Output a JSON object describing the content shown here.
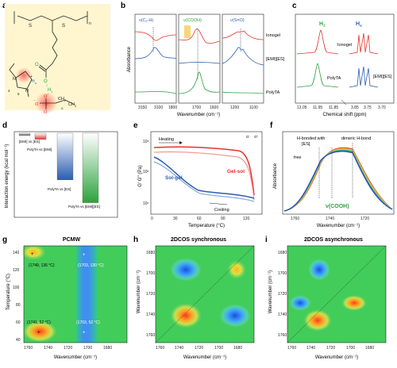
{
  "panels": {
    "a": {
      "label": "a",
      "structure": {
        "sulfur1": "S",
        "sulfur2": "S",
        "repeat_n": "n",
        "carbonyl_o": "O",
        "hydroxyl_o": "O",
        "h1": "H",
        "h1_sub": "1",
        "n1": "N",
        "n2": "N",
        "plus": "+",
        "minus": "−",
        "num_ring_4": "4",
        "num_ring_5": "5",
        "ha": "H",
        "ha_sub": "a",
        "s_center": "S",
        "o_top": "O",
        "o_left": "O",
        "o_bottom": "O",
        "ch2": "CH",
        "ch2_sub": "2",
        "ch3": "CH",
        "ch3_sub": "3",
        "chain_label": "a"
      }
    },
    "b": {
      "label": "b",
      "ylabel": "Absorbance",
      "xlabel": "Wavenumber (cm⁻¹)",
      "sections": [
        {
          "title": "ν(C",
          "title_sub": "2",
          "title_end": "-H)",
          "ticks": [
            "3150",
            "3100",
            "1800"
          ]
        },
        {
          "title": "ν(COOH)",
          "ticks": [
            "1700",
            "1600"
          ]
        },
        {
          "title": "ν(S=O)",
          "ticks": [
            "1200",
            "1100"
          ]
        }
      ],
      "legend": [
        "Ionogel",
        "[EMI][ES]",
        "PolyTA"
      ],
      "colors": {
        "ionogel": "#e8322b",
        "emies": "#2a5db0",
        "polyta": "#2ca23c"
      }
    },
    "c": {
      "label": "c",
      "xlabel": "Chemical shift (ppm)",
      "ticks": [
        "12.05",
        "11.95",
        "11.85",
        "3.85",
        "3.75",
        "3.70"
      ],
      "h1_label": "H",
      "h1_sub": "1",
      "ha_label": "H",
      "ha_sub": "a",
      "labels": [
        "Ionogel",
        "PolyTA",
        "[EMI][ES]"
      ]
    },
    "d": {
      "label": "d",
      "ylabel": "Interaction energy (kcal mol⁻¹)",
      "chart_data": {
        "type": "bar",
        "categories": [
          "[EMI] vs [ES]",
          "PolyTA vs [EMI]",
          "PolyTA vs [ES]",
          "PolyTA vs [EMI][ES]"
        ],
        "values": [
          -10,
          -28,
          -215,
          -320
        ],
        "ylim": [
          -380,
          0
        ]
      },
      "colors": [
        "#555555",
        "#e8322b",
        "#2a5db0",
        "#2ca23c"
      ]
    },
    "e": {
      "label": "e",
      "ylabel": "G' G'' (Pa)",
      "xlabel": "Temperature (°C)",
      "ticks_x": [
        "0",
        "30",
        "60",
        "90",
        "120"
      ],
      "ticks_y": [
        "10¹",
        "10³",
        "10⁵"
      ],
      "annotations": {
        "heating": "Heating",
        "cooling": "Cooling",
        "solgel": "Sol-gel",
        "gelsol": "Gel-sol"
      },
      "legend": [
        "G'",
        "G''"
      ]
    },
    "f": {
      "label": "f",
      "ylabel": "Absorbance",
      "xlabel": "Wavenumber (cm⁻¹)",
      "ticks": [
        "1760",
        "1740",
        "1720"
      ],
      "annotations": {
        "free": "free",
        "hbond_es": "H-bonded with",
        "hbond_es2": "[ES]",
        "dimeric": "dimeric H-bond",
        "vcooh": "ν(COOH)"
      }
    },
    "g": {
      "label": "g",
      "title": "PCMW",
      "ylabel": "Temperature (°C)",
      "xlabel": "Wavenumber (cm⁻¹)",
      "ticks_x": [
        "1760",
        "1740",
        "1720",
        "1700",
        "1680"
      ],
      "ticks_y": [
        "40",
        "60",
        "80",
        "100",
        "120",
        "140"
      ],
      "annotations": [
        "(1749, 136 °C)",
        "(1703, 130 °C)",
        "(1741, 52 °C)",
        "(1703, 52 °C)"
      ]
    },
    "h": {
      "label": "h",
      "title": "2DCOS synchronous",
      "ylabel": "Wavenumber (cm⁻¹)",
      "xlabel": "Wavenumber (cm⁻¹)",
      "ticks_x": [
        "1760",
        "1740",
        "1720",
        "1700",
        "1680"
      ],
      "ticks_y": [
        "1680",
        "1700",
        "1720",
        "1740",
        "1760"
      ]
    },
    "i": {
      "label": "i",
      "title": "2DCOS asynchronous",
      "ylabel": "Wavenumber (cm⁻¹)",
      "xlabel": "Wavenumber (cm⁻¹)",
      "ticks_x": [
        "1760",
        "1740",
        "1720",
        "1700",
        "1680"
      ],
      "ticks_y": [
        "1680",
        "1700",
        "1720",
        "1740",
        "1760"
      ]
    }
  }
}
